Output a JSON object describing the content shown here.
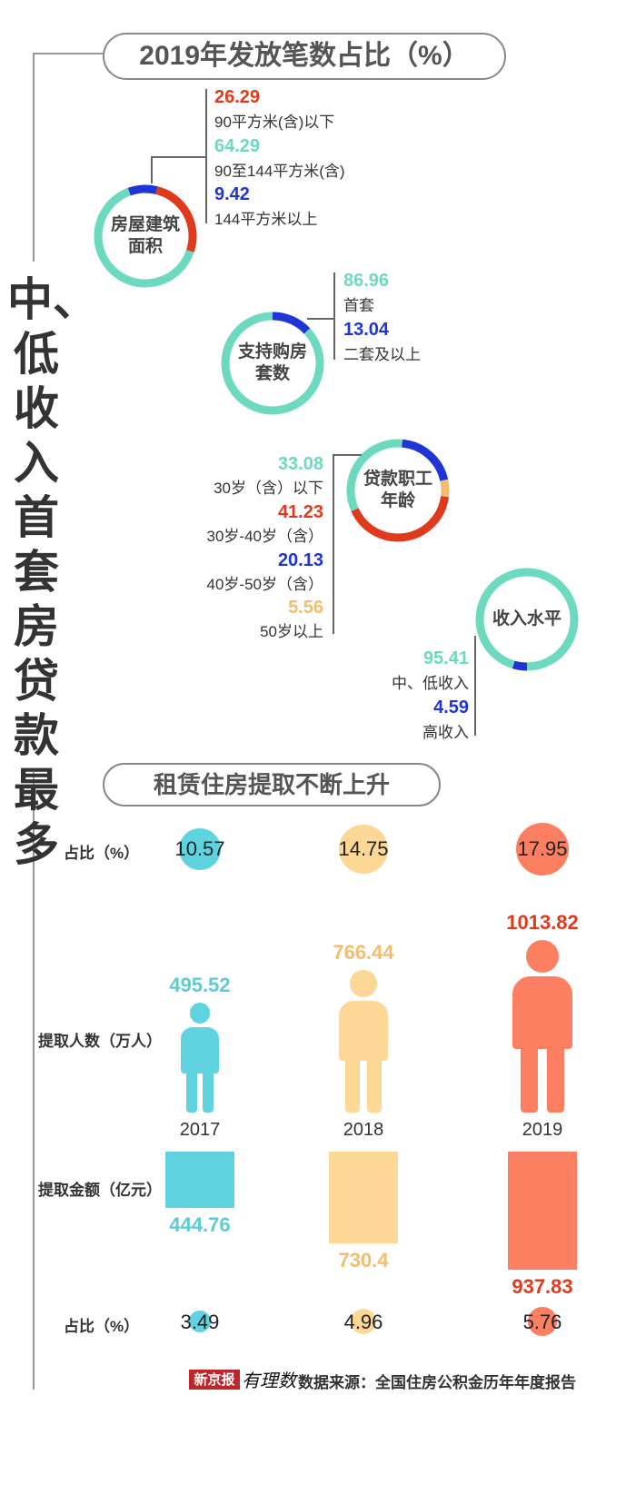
{
  "colors": {
    "red": "#e03a1c",
    "teal": "#6dd9bf",
    "blue": "#1f35d6",
    "yellow": "#f2bd6d",
    "cyan": "#5fd3e0",
    "peach": "#fcd795",
    "salmon": "#fd7f61"
  },
  "vertical_title": "中、低收入首套房贷款最多",
  "section1_title": "2019年发放笔数占比（%）",
  "section2_title": "租赁住房提取不断上升",
  "chart_data": [
    {
      "type": "pie",
      "label": "房屋建筑面积",
      "slices": [
        {
          "value": "26.29",
          "label": "90平方米(含)以下",
          "color": "#e03a1c"
        },
        {
          "value": "64.29",
          "label": "90至144平方米(含)",
          "color": "#6dd9bf"
        },
        {
          "value": "9.42",
          "label": "144平方米以上",
          "color": "#1f35d6"
        }
      ]
    },
    {
      "type": "pie",
      "label": "支持购房套数",
      "slices": [
        {
          "value": "86.96",
          "label": "首套",
          "color": "#6dd9bf"
        },
        {
          "value": "13.04",
          "label": "二套及以上",
          "color": "#1f35d6"
        }
      ]
    },
    {
      "type": "pie",
      "label": "贷款职工年龄",
      "slices": [
        {
          "value": "33.08",
          "label": "30岁（含）以下",
          "color": "#6dd9bf"
        },
        {
          "value": "41.23",
          "label": "30岁-40岁（含）",
          "color": "#e03a1c"
        },
        {
          "value": "20.13",
          "label": "40岁-50岁（含）",
          "color": "#1f35d6"
        },
        {
          "value": "5.56",
          "label": "50岁以上",
          "color": "#f2bd6d"
        }
      ]
    },
    {
      "type": "pie",
      "label": "收入水平",
      "slices": [
        {
          "value": "95.41",
          "label": "中、低收入",
          "color": "#6dd9bf"
        },
        {
          "value": "4.59",
          "label": "高收入",
          "color": "#1f35d6"
        }
      ]
    },
    {
      "type": "bar",
      "title": "租赁住房提取不断上升",
      "categories": [
        "2017",
        "2018",
        "2019"
      ],
      "row_labels": {
        "share_top": "占比（%）",
        "people": "提取人数（万人）",
        "amount": "提取金额（亿元）",
        "share_bottom": "占比（%）"
      },
      "share_top": [
        "10.57",
        "14.75",
        "17.95"
      ],
      "people": [
        "495.52",
        "766.44",
        "1013.82"
      ],
      "amount": [
        "444.76",
        "730.4",
        "937.83"
      ],
      "share_bottom": [
        "3.49",
        "4.96",
        "5.76"
      ],
      "colors": [
        "#5fd3e0",
        "#fcd795",
        "#fd7f61"
      ],
      "value_colors": [
        "#5fcad6",
        "#f2bd6d",
        "#e03a1c"
      ]
    }
  ],
  "footer": {
    "brand": "新京报",
    "logo": "有理数",
    "source": "数据来源：全国住房公积金历年年度报告"
  }
}
